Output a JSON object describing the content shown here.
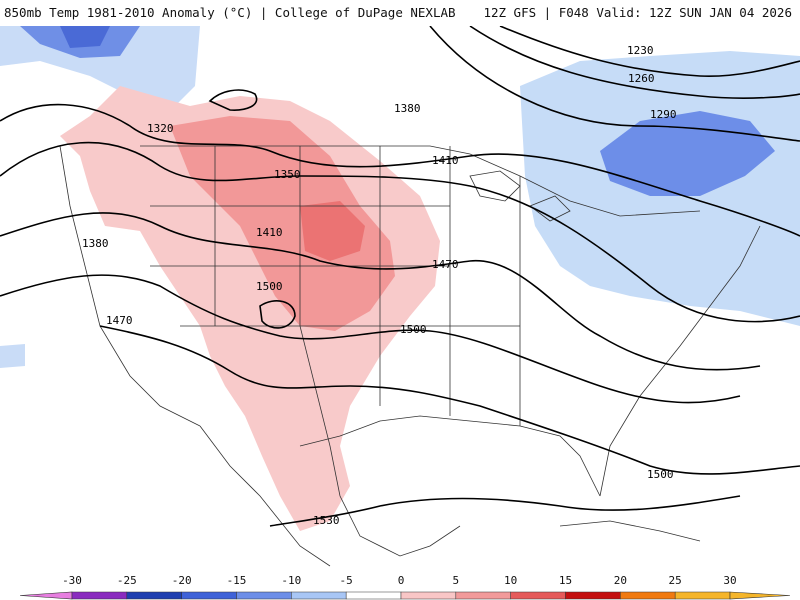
{
  "header": {
    "title_left": "850mb Temp 1981-2010 Anomaly (°C) | College of DuPage NEXLAB",
    "title_right": "12Z GFS | F048 Valid: 12Z SUN JAN 04 2026"
  },
  "contour_labels": [
    "1230",
    "1260",
    "1290",
    "1320",
    "1350",
    "1380",
    "1410",
    "1410",
    "1380",
    "1470",
    "1500",
    "1470",
    "1500",
    "1500",
    "1530"
  ],
  "colorbar": {
    "ticks": [
      "-30",
      "-25",
      "-20",
      "-15",
      "-10",
      "-5",
      "0",
      "5",
      "10",
      "15",
      "20",
      "25",
      "30"
    ],
    "colors": [
      "#e77ee0",
      "#8a2bbf",
      "#1f3fb0",
      "#3f62d8",
      "#6d8ee8",
      "#a8c6f5",
      "#ffffff",
      "#f9c6c6",
      "#f29a9a",
      "#e55a5a",
      "#c41010",
      "#f07a10",
      "#f5b52a"
    ]
  }
}
